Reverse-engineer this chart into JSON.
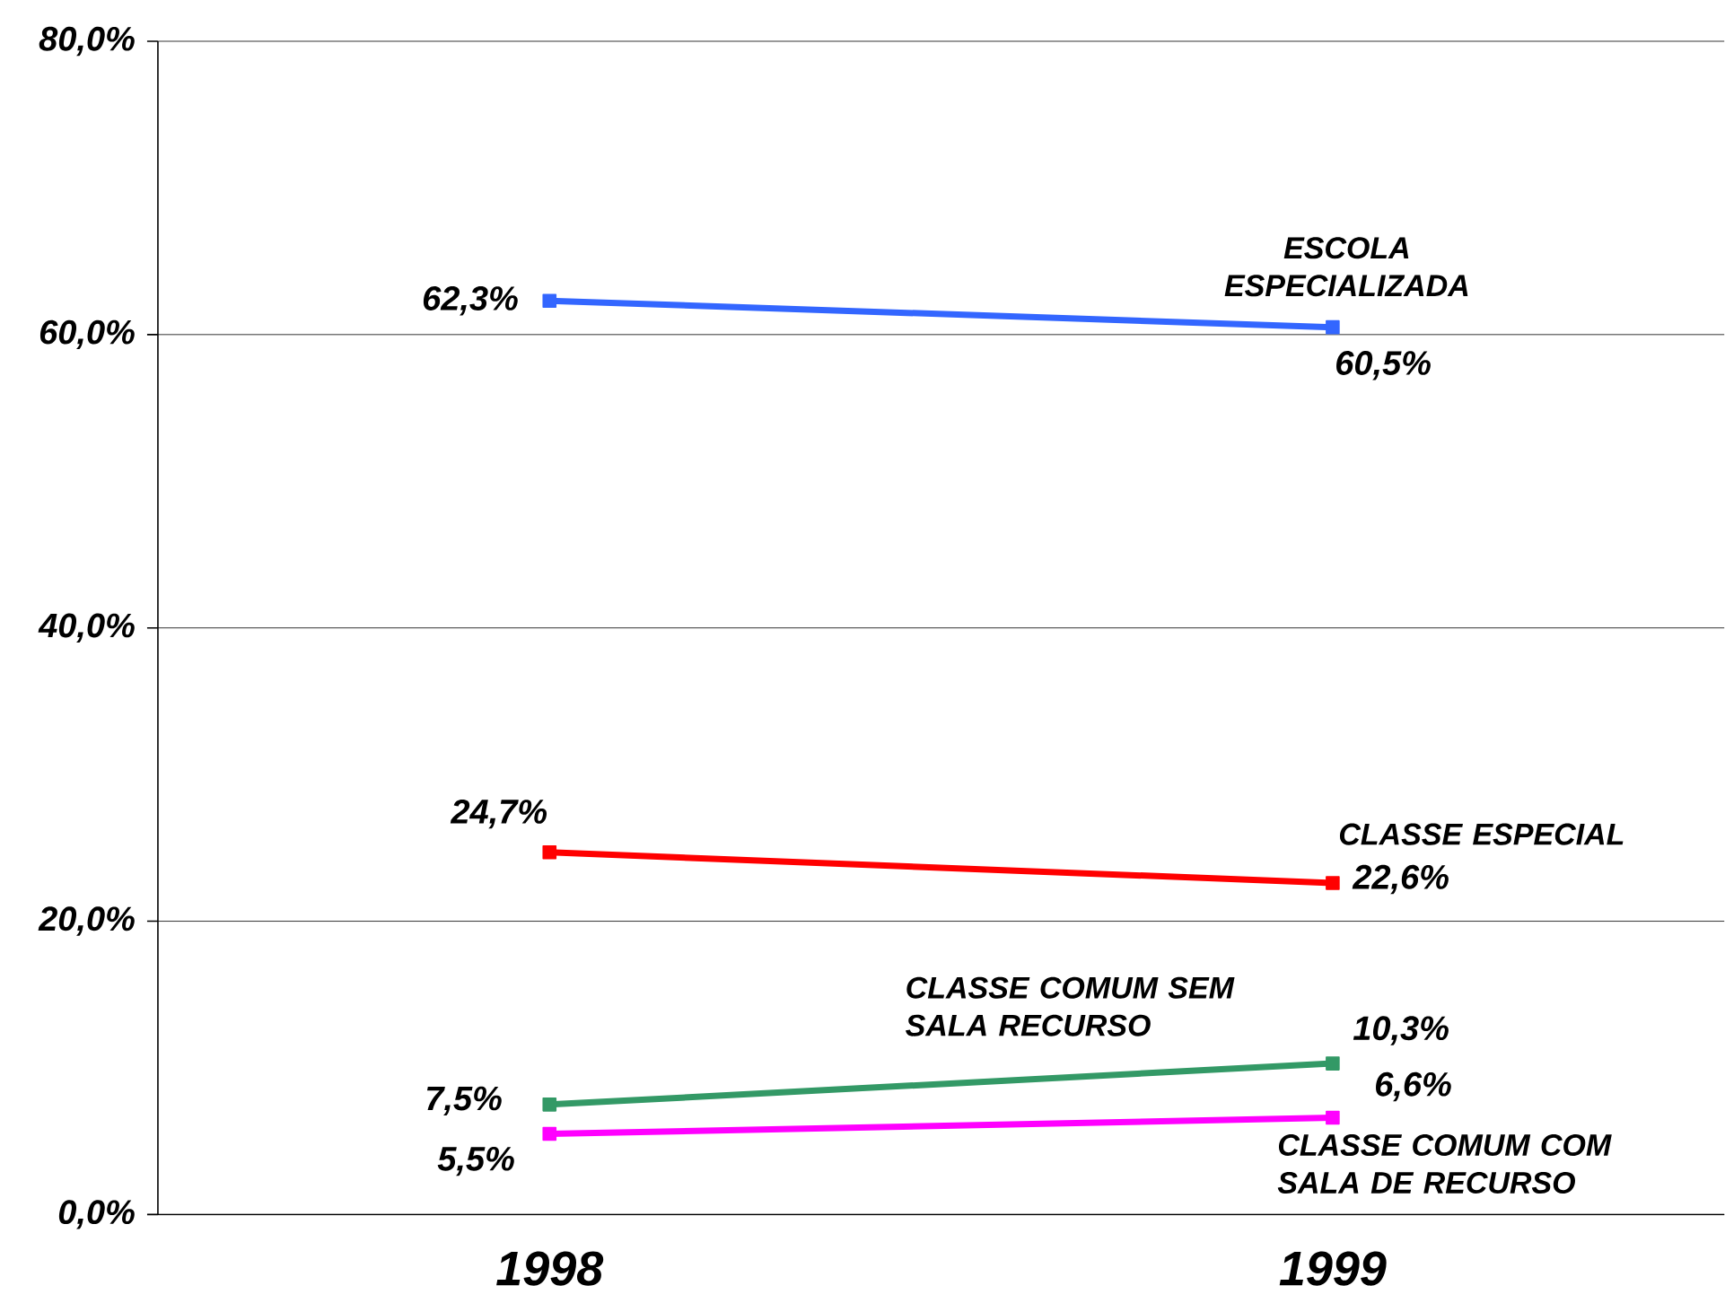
{
  "chart_data": {
    "type": "line",
    "categories": [
      "1998",
      "1999"
    ],
    "series": [
      {
        "name": "ESCOLA ESPECIALIZADA",
        "color": "#3366ff",
        "values": [
          62.3,
          60.5
        ],
        "value_labels": [
          "62,3%",
          "60,5%"
        ]
      },
      {
        "name": "CLASSE ESPECIAL",
        "color": "#ff0000",
        "values": [
          24.7,
          22.6
        ],
        "value_labels": [
          "24,7%",
          "22,6%"
        ]
      },
      {
        "name": "CLASSE COMUM SEM  SALA RECURSO",
        "color": "#339966",
        "values": [
          7.5,
          10.3
        ],
        "value_labels": [
          "7,5%",
          "10,3%"
        ]
      },
      {
        "name": "CLASSE COMUM COM SALA DE RECURSO",
        "color": "#ff00ff",
        "values": [
          5.5,
          6.6
        ],
        "value_labels": [
          "5,5%",
          "6,6%"
        ]
      }
    ],
    "ylim": [
      0,
      80
    ],
    "yticks": [
      {
        "value": 0,
        "label": "0,0%"
      },
      {
        "value": 20,
        "label": "20,0%"
      },
      {
        "value": 40,
        "label": "40,0%"
      },
      {
        "value": 60,
        "label": "60,0%"
      },
      {
        "value": 80,
        "label": "80,0%"
      }
    ],
    "grid": "y",
    "legend": false,
    "marker": "square",
    "line_style": "solid"
  }
}
